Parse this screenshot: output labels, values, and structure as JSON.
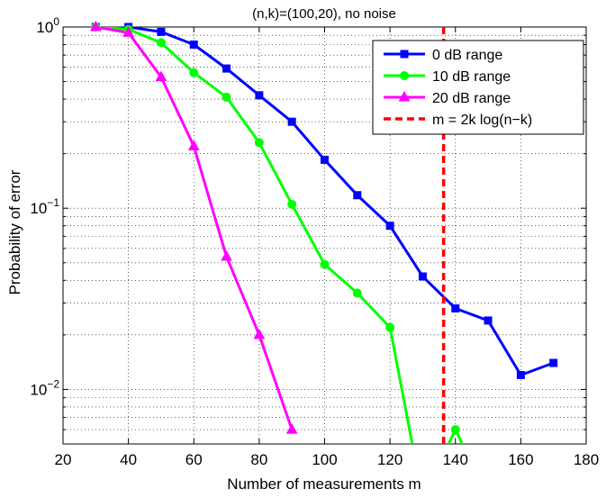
{
  "chart_data": {
    "type": "line",
    "title": "(n,k)=(100,20), no noise",
    "xlabel": "Number of measurements m",
    "ylabel": "Probability of error",
    "xlim": [
      20,
      180
    ],
    "ylim": [
      0.005,
      1
    ],
    "yscale": "log",
    "grid": true,
    "legend_position": "top-right",
    "x_ticks": [
      20,
      40,
      60,
      80,
      100,
      120,
      140,
      160,
      180
    ],
    "x_tick_labels": [
      "20",
      "40",
      "60",
      "80",
      "100",
      "120",
      "140",
      "160",
      "180"
    ],
    "y_ticks": [
      {
        "value": 1,
        "mantissa": "10",
        "exponent": "0"
      },
      {
        "value": 0.1,
        "mantissa": "10",
        "exponent": "−1"
      },
      {
        "value": 0.01,
        "mantissa": "10",
        "exponent": "−2"
      }
    ],
    "series": [
      {
        "name": "0 dB range",
        "color": "#0000ff",
        "marker": "square",
        "x": [
          30,
          40,
          50,
          60,
          70,
          80,
          90,
          100,
          110,
          120,
          130,
          140,
          150,
          160,
          170
        ],
        "y": [
          1.0,
          1.0,
          0.94,
          0.8,
          0.59,
          0.42,
          0.3,
          0.185,
          0.118,
          0.08,
          0.042,
          0.028,
          0.024,
          0.012,
          0.014
        ]
      },
      {
        "name": "10 dB range",
        "color": "#00ff00",
        "marker": "circle",
        "x": [
          30,
          40,
          50,
          60,
          70,
          80,
          90,
          100,
          110,
          120,
          130,
          140,
          150
        ],
        "y": [
          1.0,
          0.97,
          0.82,
          0.56,
          0.41,
          0.23,
          0.105,
          0.049,
          0.034,
          0.022,
          0.0025,
          0.006,
          0.0025
        ]
      },
      {
        "name": "20 dB range",
        "color": "#ff00ff",
        "marker": "triangle",
        "x": [
          30,
          40,
          50,
          60,
          70,
          80,
          90
        ],
        "y": [
          1.0,
          0.93,
          0.53,
          0.22,
          0.054,
          0.02,
          0.006
        ]
      },
      {
        "name": "m = 2k log(n−k)",
        "color": "#ff0000",
        "marker": "none",
        "style": "dashed-vertical",
        "x_value": 136.4
      }
    ]
  }
}
